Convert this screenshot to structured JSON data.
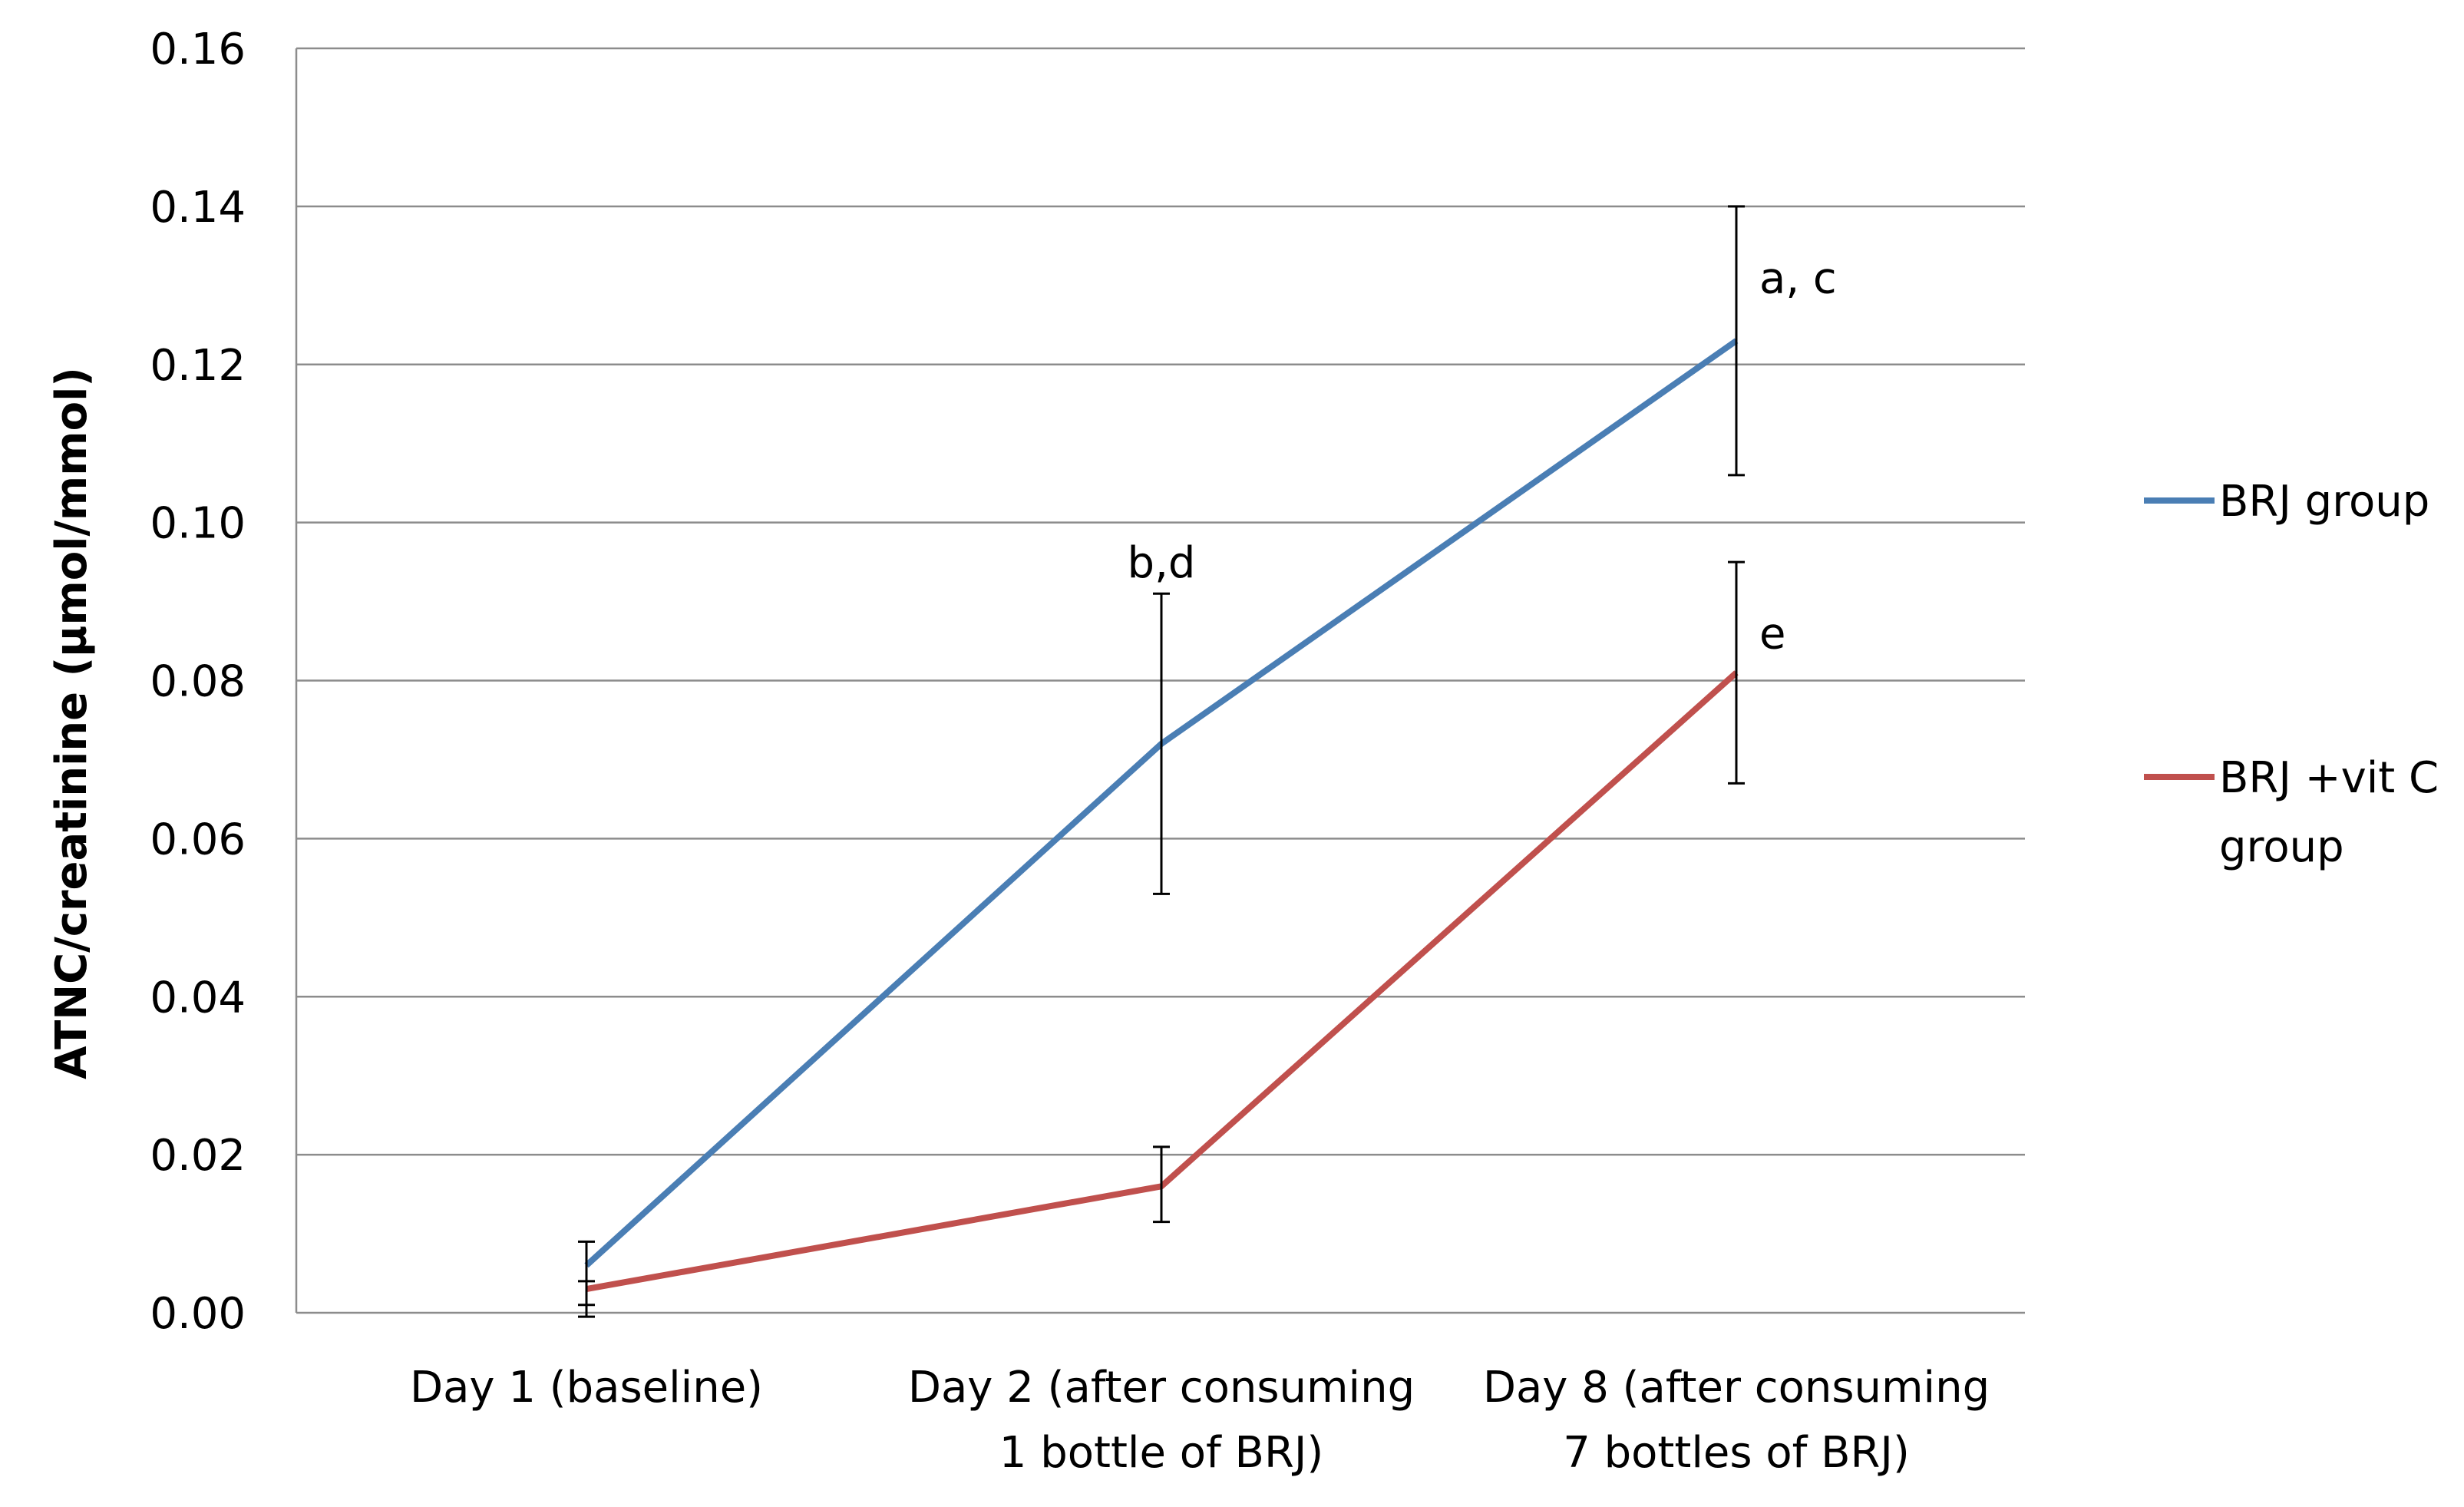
{
  "chart_data": {
    "type": "line",
    "title": "",
    "xlabel": "",
    "ylabel": "ATNC/creatinine  (µmol/mmol)",
    "ylim": [
      0,
      0.16
    ],
    "yticks": [
      "0.00",
      "0.02",
      "0.04",
      "0.06",
      "0.08",
      "0.10",
      "0.12",
      "0.14",
      "0.16"
    ],
    "ytick_values": [
      0,
      0.02,
      0.04,
      0.06,
      0.08,
      0.1,
      0.12,
      0.14,
      0.16
    ],
    "grid": true,
    "legend_position": "right",
    "categories": [
      [
        "Day 1 (baseline)"
      ],
      [
        "Day 2 (after consuming",
        "1 bottle of BRJ)"
      ],
      [
        "Day 8 (after consuming",
        "7 bottles of BRJ)"
      ]
    ],
    "series": [
      {
        "name": "BRJ group",
        "legend_lines": [
          "BRJ group"
        ],
        "color": "#4a7eb4",
        "values": [
          0.006,
          0.072,
          0.123
        ],
        "err_low": [
          0.001,
          0.053,
          0.106
        ],
        "err_high": [
          0.009,
          0.091,
          0.14
        ]
      },
      {
        "name": "BRJ +vit C group",
        "legend_lines": [
          "BRJ +vit C",
          "group"
        ],
        "color": "#c0504d",
        "values": [
          0.003,
          0.016,
          0.081
        ],
        "err_low": [
          -0.0005,
          0.0115,
          0.067
        ],
        "err_high": [
          0.004,
          0.021,
          0.095
        ]
      }
    ],
    "annotations": [
      {
        "text": "a, c",
        "category_index": 2,
        "y": 0.131
      },
      {
        "text": "b,d",
        "category_index": 1,
        "y": 0.095
      },
      {
        "text": "e",
        "category_index": 2,
        "y": 0.086
      }
    ]
  }
}
